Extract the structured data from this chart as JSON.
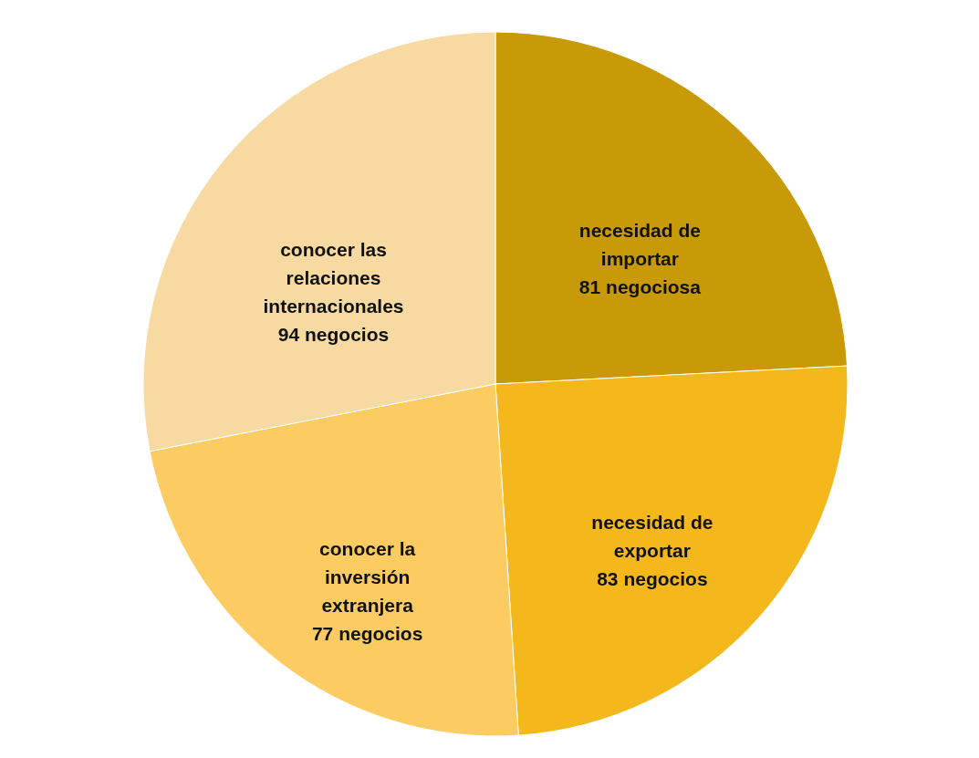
{
  "chart_data": {
    "type": "pie",
    "categories": [
      "necesidad de importar",
      "necesidad de exportar",
      "conocer la inversión extranjera",
      "conocer las relaciones internacionales"
    ],
    "values": [
      81,
      83,
      77,
      94
    ],
    "value_labels": [
      "81 negociosa",
      "83 negocios",
      "77 negocios",
      "94 negocios"
    ],
    "colors": [
      "#c99a08",
      "#f4b81c",
      "#fccb62",
      "#f7d9a2"
    ],
    "legend": false
  }
}
